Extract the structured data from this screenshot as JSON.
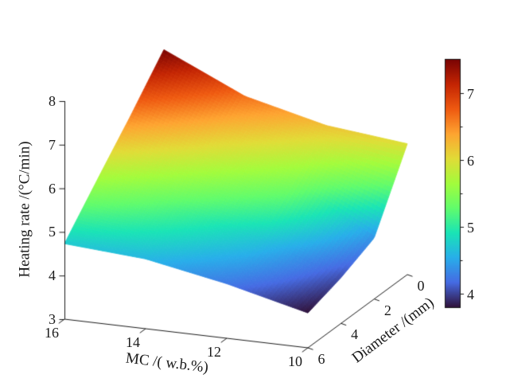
{
  "figure": {
    "background": "#ffffff",
    "text_color": "#1a1a1a",
    "axis_color": "#1a1a1a"
  },
  "chart_data": {
    "type": "surface",
    "title": "",
    "xlabel": "MC /( w.b.%)",
    "ylabel": "Diameter /(mm)",
    "zlabel": "Heating rate /(°C/min)",
    "x_axis_name": "MC (w.b.%)",
    "y_axis_name": "Diameter (mm)",
    "z_axis_name": "Heating rate (°C/min)",
    "x_values": [
      16,
      14,
      12,
      10
    ],
    "y_values": [
      0,
      2,
      4,
      6
    ],
    "z_values": [
      [
        7.5,
        6.65,
        6.2,
        6.0
      ],
      [
        6.55,
        5.95,
        5.45,
        4.4
      ],
      [
        5.65,
        5.15,
        4.7,
        4.05
      ],
      [
        4.73,
        4.6,
        4.25,
        3.8
      ]
    ],
    "x_ticks": [
      16,
      14,
      12,
      10
    ],
    "y_ticks": [
      0,
      2,
      4,
      6
    ],
    "z_ticks": [
      3,
      4,
      5,
      6,
      7,
      8
    ],
    "zlim": [
      3,
      8
    ],
    "xlim": [
      10,
      16
    ],
    "ylim": [
      0,
      6
    ],
    "grid": false,
    "legend": null,
    "color_min": 3.8,
    "color_max": 7.5,
    "colorbar_ticks": [
      4,
      5,
      6,
      7
    ],
    "colorbar_minor_ticks": [
      4.5,
      5.5,
      6.5
    ],
    "colormap": "turbo",
    "colormap_stops": [
      "#30123b",
      "#466be3",
      "#28aeea",
      "#1ae4b6",
      "#61fc6c",
      "#a3fc3c",
      "#e1dc37",
      "#fea431",
      "#ef5a11",
      "#c42503",
      "#7a0403"
    ]
  }
}
